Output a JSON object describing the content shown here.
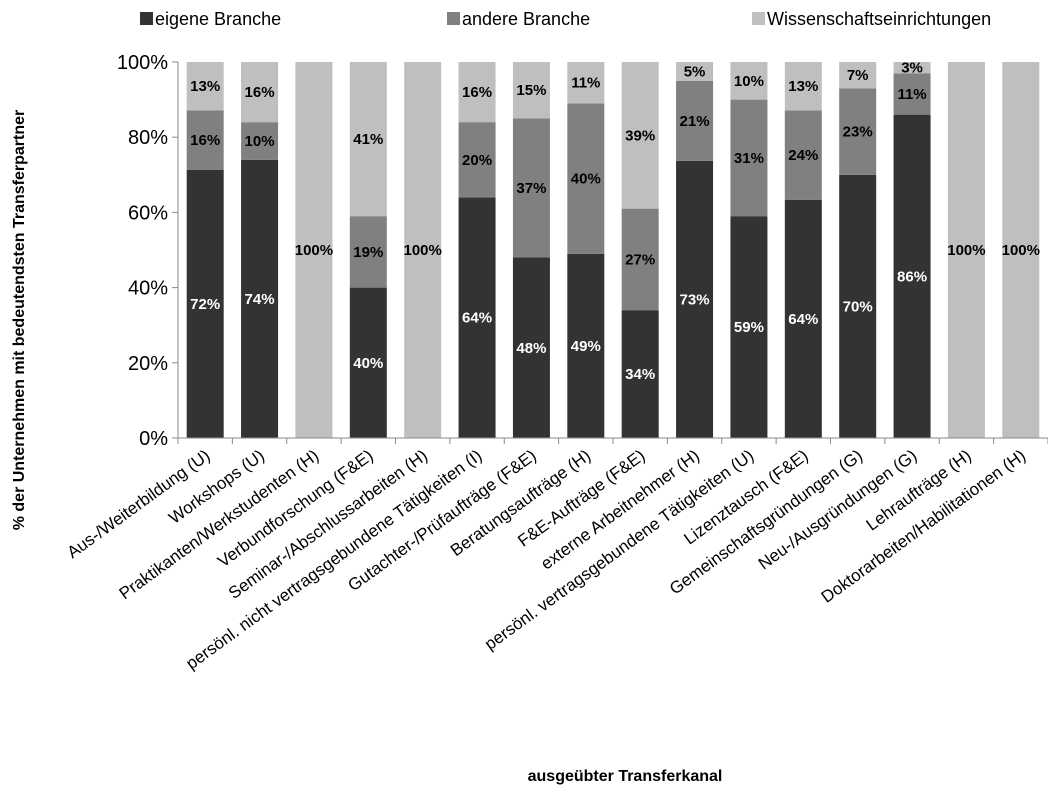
{
  "chart_data": {
    "type": "bar",
    "stacked": true,
    "percent_stacked": true,
    "title": "",
    "xlabel": "ausgeübter Transferkanal",
    "ylabel": "% der Unternehmen mit bedeutendsten Transferpartner",
    "ylim": [
      0,
      100
    ],
    "yticks": [
      "0%",
      "20%",
      "40%",
      "60%",
      "80%",
      "100%"
    ],
    "legend_position": "top",
    "categories": [
      "Aus-/Weiterbildung (U)",
      "Workshops (U)",
      "Praktikanten/Werkstudenten (H)",
      "Verbundforschung (F&E)",
      "Seminar-/Abschlussarbeiten (H)",
      "persönl. nicht vertragsgebundene Tätigkeiten (I)",
      "Gutachter-/Prüfaufträge (F&E)",
      "Beratungsaufträge (H)",
      "F&E-Aufträge (F&E)",
      "externe Arbeitnehmer (H)",
      "persönl. vertragsgebundene Tätigkeiten (U)",
      "Lizenztausch (F&E)",
      "Gemeinschaftsgründungen (G)",
      "Neu-/Ausgründungen (G)",
      "Lehraufträge (H)",
      "Doktorarbeiten/Habilitationen (H)"
    ],
    "series": [
      {
        "name": "eigene Branche",
        "color": "#333333",
        "label_color": "#ffffff",
        "values": [
          72,
          74,
          0,
          40,
          0,
          64,
          48,
          49,
          34,
          73,
          59,
          64,
          70,
          86,
          0,
          0
        ],
        "labels": [
          "72%",
          "74%",
          "",
          "40%",
          "",
          "64%",
          "48%",
          "49%",
          "34%",
          "73%",
          "59%",
          "64%",
          "70%",
          "86%",
          "",
          ""
        ]
      },
      {
        "name": "andere Branche",
        "color": "#808080",
        "label_color": "#000000",
        "values": [
          16,
          10,
          0,
          19,
          0,
          20,
          37,
          40,
          27,
          21,
          31,
          24,
          23,
          11,
          0,
          0
        ],
        "labels": [
          "16%",
          "10%",
          "",
          "19%",
          "",
          "20%",
          "37%",
          "40%",
          "27%",
          "21%",
          "31%",
          "24%",
          "23%",
          "11%",
          "",
          ""
        ]
      },
      {
        "name": "Wissenschaftseinrichtungen",
        "color": "#bfbfbf",
        "label_color": "#000000",
        "values": [
          13,
          16,
          100,
          41,
          100,
          16,
          15,
          11,
          39,
          5,
          10,
          13,
          7,
          3,
          100,
          100
        ],
        "labels": [
          "13%",
          "16%",
          "100%",
          "41%",
          "100%",
          "16%",
          "15%",
          "11%",
          "39%",
          "5%",
          "10%",
          "13%",
          "7%",
          "3%",
          "100%",
          "100%"
        ]
      }
    ]
  }
}
